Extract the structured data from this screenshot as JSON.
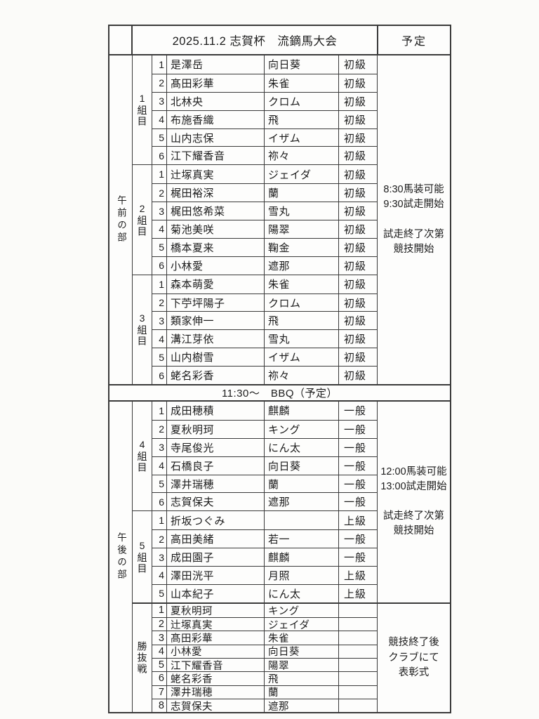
{
  "page": {
    "title_row": {
      "title": "2025.11.2 志賀杯　流鏑馬大会",
      "plan_header": "予定"
    }
  },
  "sessions": {
    "am": {
      "label": "午前の部",
      "schedule": "8:30馬装可能\n9:30試走開始\n\n試走終了次第\n競技開始"
    },
    "pm": {
      "label": "午後の部",
      "schedule": "12:00馬装可能\n13:00試走開始\n\n試走終了次第\n競技開始",
      "playoff_schedule": "競技終了後\nクラブにて\n表彰式"
    }
  },
  "bbq_row": {
    "text": "11:30～　BBQ（予定）"
  },
  "groups": [
    {
      "label": "1組目",
      "session": "am",
      "rows": [
        {
          "no": "1",
          "name": "是澤岳",
          "horse": "向日葵",
          "level": "初級"
        },
        {
          "no": "2",
          "name": "髙田彩華",
          "horse": "朱雀",
          "level": "初級"
        },
        {
          "no": "3",
          "name": "北林央",
          "horse": "クロム",
          "level": "初級"
        },
        {
          "no": "4",
          "name": "布施香織",
          "horse": "飛",
          "level": "初級"
        },
        {
          "no": "5",
          "name": "山内志保",
          "horse": "イザム",
          "level": "初級"
        },
        {
          "no": "6",
          "name": "江下耀香音",
          "horse": "祢々",
          "level": "初級"
        }
      ]
    },
    {
      "label": "2組目",
      "session": "am",
      "rows": [
        {
          "no": "1",
          "name": "辻塚真実",
          "horse": "ジェイダ",
          "level": "初級"
        },
        {
          "no": "2",
          "name": "梶田裕深",
          "horse": "蘭",
          "level": "初級"
        },
        {
          "no": "3",
          "name": "梶田悠希菜",
          "horse": "雪丸",
          "level": "初級"
        },
        {
          "no": "4",
          "name": "菊池美咲",
          "horse": "陽翠",
          "level": "初級"
        },
        {
          "no": "5",
          "name": "橋本夏来",
          "horse": "鞠金",
          "level": "初級"
        },
        {
          "no": "6",
          "name": "小林愛",
          "horse": "遮那",
          "level": "初級"
        }
      ]
    },
    {
      "label": "3組目",
      "session": "am",
      "rows": [
        {
          "no": "1",
          "name": "森本萌愛",
          "horse": "朱雀",
          "level": "初級"
        },
        {
          "no": "2",
          "name": "下苧坪陽子",
          "horse": "クロム",
          "level": "初級"
        },
        {
          "no": "3",
          "name": "類家伸一",
          "horse": "飛",
          "level": "初級"
        },
        {
          "no": "4",
          "name": "溝江芽依",
          "horse": "雪丸",
          "level": "初級"
        },
        {
          "no": "5",
          "name": "山内樹雪",
          "horse": "イザム",
          "level": "初級"
        },
        {
          "no": "6",
          "name": "蛯名彩香",
          "horse": "祢々",
          "level": "初級"
        }
      ]
    },
    {
      "label": "4組目",
      "session": "pm",
      "rows": [
        {
          "no": "1",
          "name": "成田穂積",
          "horse": "麒麟",
          "level": "一般"
        },
        {
          "no": "2",
          "name": "夏秋明珂",
          "horse": "キング",
          "level": "一般"
        },
        {
          "no": "3",
          "name": "寺尾俊光",
          "horse": "にん太",
          "level": "一般"
        },
        {
          "no": "4",
          "name": "石橋良子",
          "horse": "向日葵",
          "level": "一般"
        },
        {
          "no": "5",
          "name": "澤井瑞穂",
          "horse": "蘭",
          "level": "一般"
        },
        {
          "no": "6",
          "name": "志賀保夫",
          "horse": "遮那",
          "level": "一般"
        }
      ]
    },
    {
      "label": "5組目",
      "session": "pm",
      "rows": [
        {
          "no": "1",
          "name": "折坂つぐみ",
          "horse": "",
          "level": "上級"
        },
        {
          "no": "2",
          "name": "高田美緒",
          "horse": "若一",
          "level": "一般"
        },
        {
          "no": "3",
          "name": "成田園子",
          "horse": "麒麟",
          "level": "一般"
        },
        {
          "no": "4",
          "name": "澤田洸平",
          "horse": "月照",
          "level": "上級"
        },
        {
          "no": "5",
          "name": "山本紀子",
          "horse": "にん太",
          "level": "上級"
        }
      ]
    }
  ],
  "playoff": {
    "label": "勝抜戦",
    "rows": [
      {
        "no": "1",
        "name": "夏秋明珂",
        "horse": "キング",
        "level": ""
      },
      {
        "no": "2",
        "name": "辻塚真実",
        "horse": "ジェイダ",
        "level": ""
      },
      {
        "no": "3",
        "name": "髙田彩華",
        "horse": "朱雀",
        "level": ""
      },
      {
        "no": "4",
        "name": "小林愛",
        "horse": "向日葵",
        "level": ""
      },
      {
        "no": "5",
        "name": "江下耀香音",
        "horse": "陽翠",
        "level": ""
      },
      {
        "no": "6",
        "name": "蛯名彩香",
        "horse": "飛",
        "level": ""
      },
      {
        "no": "7",
        "name": "澤井瑞穂",
        "horse": "蘭",
        "level": ""
      },
      {
        "no": "8",
        "name": "志賀保夫",
        "horse": "遮那",
        "level": ""
      }
    ]
  }
}
